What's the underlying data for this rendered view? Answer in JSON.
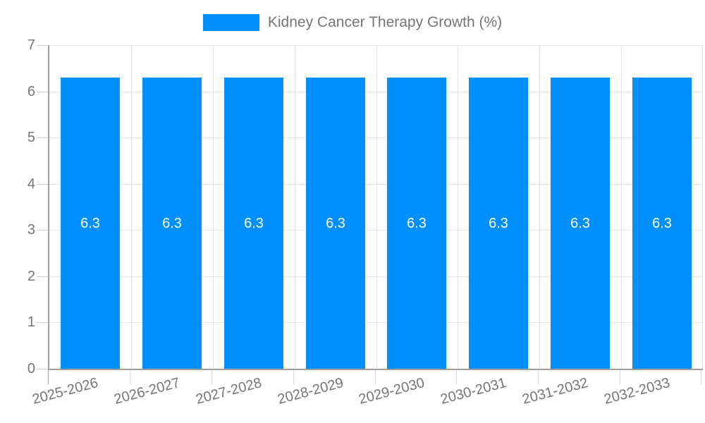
{
  "chart_data": {
    "type": "bar",
    "title": "Kidney Cancer Therapy Growth (%)",
    "legend_label": "Kidney Cancer Therapy Growth (%)",
    "legend_position": "top",
    "categories": [
      "2025-2026",
      "2026-2027",
      "2027-2028",
      "2028-2029",
      "2029-2030",
      "2030-2031",
      "2031-2032",
      "2032-2033"
    ],
    "values": [
      6.3,
      6.3,
      6.3,
      6.3,
      6.3,
      6.3,
      6.3,
      6.3
    ],
    "value_label_format": "6.3",
    "xlabel": "",
    "ylabel": "",
    "ylim": [
      0,
      7
    ],
    "yticks": [
      0,
      1,
      2,
      3,
      4,
      5,
      6,
      7
    ],
    "grid": true,
    "x_label_rotation_deg": -15
  },
  "colors": {
    "bar": "#008FFB",
    "value_label": "#ffffff",
    "axis_line": "#9e9e9e",
    "gridline": "#e3e3e3",
    "text": "#757575",
    "background": "#ffffff"
  }
}
